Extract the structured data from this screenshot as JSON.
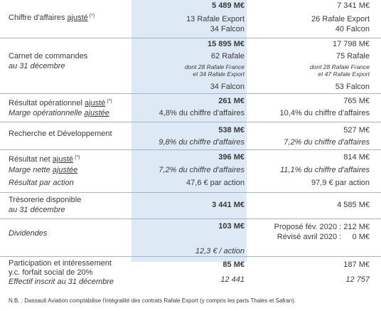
{
  "rows": [
    {
      "label_pre": "Chiffre d'affaires ",
      "label_u": "ajusté",
      "label_sup": "(*)",
      "c2": [
        "5 489 M€",
        "13 Rafale Export",
        "34 Falcon"
      ],
      "c3": [
        "7 341 M€",
        "26 Rafale Export",
        "40 Falcon"
      ]
    },
    {
      "label1": "Carnet de commandes",
      "label2": "au 31 décembre",
      "c2": [
        "15 895 M€",
        "62 Rafale",
        "dont 28 Rafale France",
        "et 34 Rafale Export",
        "34 Falcon"
      ],
      "c3": [
        "17 798 M€",
        "75 Rafale",
        "dont 28 Rafale France",
        "et 47 Rafale Export",
        "53 Falcon"
      ]
    },
    {
      "label_pre": "Résultat opérationnel ",
      "label_u": "ajusté",
      "label_sup": "(*)",
      "sub_pre": "Marge opérationnelle ",
      "sub_u": "ajustée",
      "c2": [
        "261 M€",
        "4,8% du chiffre d'affaires"
      ],
      "c3": [
        "765 M€",
        "10,4% du chiffre d'affaires"
      ]
    },
    {
      "label1": "Recherche et Développement",
      "c2": [
        "538 M€",
        "9,8% du chiffre d'affaires"
      ],
      "c3": [
        "527 M€",
        "7,2% du chiffre d'affaires"
      ]
    },
    {
      "label_pre": "Résultat net ",
      "label_u": "ajusté",
      "label_sup": "(*)",
      "sub_pre": "Marge nette ",
      "sub_u": "ajustée",
      "sub2": "Résultat par action",
      "c2": [
        "396 M€",
        "7,2% du chiffre d'affaires",
        "47,6 € par action"
      ],
      "c3": [
        "814 M€",
        "11,1% du chiffre d'affaires",
        "97,9 € par action"
      ]
    },
    {
      "label1": "Trésorerie disponible",
      "label2": "au 31 décembre",
      "c2": [
        "3 441 M€"
      ],
      "c3": [
        "4 585 M€"
      ]
    },
    {
      "label1": "Dividendes",
      "c2": [
        "103 M€",
        "12,3 € / action"
      ],
      "c3": [
        "Proposé fév. 2020 : 212 M€",
        "Révisé avril 2020 :     0 M€"
      ]
    },
    {
      "label1": "Participation et intéressement",
      "label2": "y.c. forfait social de 20%",
      "label3": "Effectif inscrit au 31 décembre",
      "c2": [
        "85 M€",
        "12 441"
      ],
      "c3": [
        "187 M€",
        "12 757"
      ]
    }
  ],
  "footnote": "N.B. : Dassault Aviation comptabilise l'intégralité des contrats Rafale Export (y compris les parts Thales et Safran)."
}
